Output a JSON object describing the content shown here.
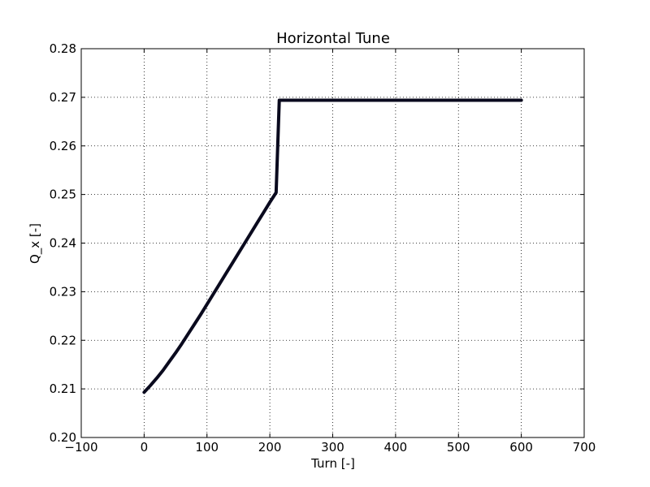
{
  "chart_data": {
    "type": "line",
    "title": "Horizontal Tune",
    "xlabel": "Turn [-]",
    "ylabel": "Q_x [-]",
    "xlim": [
      -100,
      700
    ],
    "ylim": [
      0.2,
      0.28
    ],
    "xticks": [
      -100,
      0,
      100,
      200,
      300,
      400,
      500,
      600,
      700
    ],
    "yticks": [
      0.2,
      0.21,
      0.22,
      0.23,
      0.24,
      0.25,
      0.26,
      0.27,
      0.28
    ],
    "xtick_labels": [
      "−100",
      "0",
      "100",
      "200",
      "300",
      "400",
      "500",
      "600",
      "700"
    ],
    "ytick_labels": [
      "0.20",
      "0.21",
      "0.22",
      "0.23",
      "0.24",
      "0.25",
      "0.26",
      "0.27",
      "0.28"
    ],
    "grid": true,
    "grid_style": "dotted",
    "line_color": "#0a0a1e",
    "series": [
      {
        "x": [
          0,
          10,
          20,
          30,
          40,
          50,
          60,
          70,
          80,
          90,
          100,
          110,
          120,
          130,
          140,
          150,
          160,
          170,
          180,
          190,
          200,
          210,
          215,
          250,
          300,
          350,
          400,
          450,
          500,
          550,
          600
        ],
        "y": [
          0.2093,
          0.2107,
          0.2122,
          0.2138,
          0.2156,
          0.2174,
          0.2193,
          0.2213,
          0.2233,
          0.2253,
          0.2274,
          0.2295,
          0.2316,
          0.2337,
          0.2358,
          0.2379,
          0.24,
          0.2421,
          0.2442,
          0.2463,
          0.2484,
          0.2504,
          0.2694,
          0.2694,
          0.2694,
          0.2694,
          0.2694,
          0.2694,
          0.2694,
          0.2694,
          0.2694
        ]
      }
    ]
  }
}
